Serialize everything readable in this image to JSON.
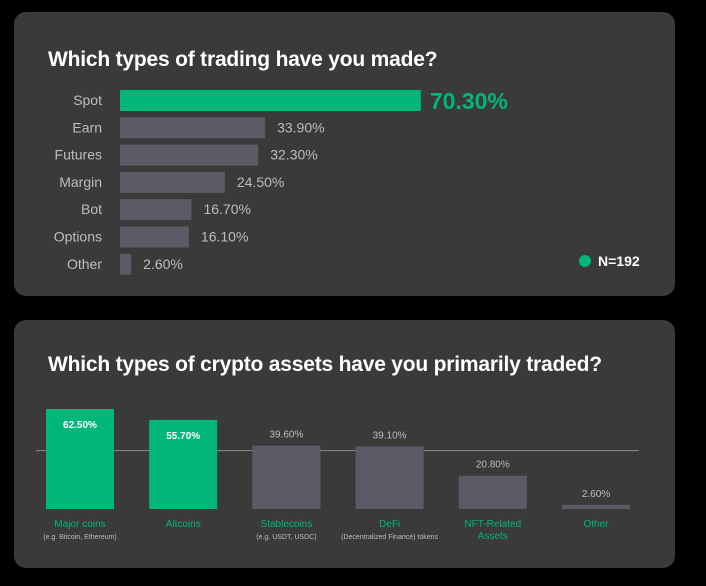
{
  "colors": {
    "accent": "#00b67a",
    "neutral_bar": "#5b5b66",
    "card_bg": "#3a3a3a",
    "label_grey": "#bdbdbd"
  },
  "card1": {
    "title": "Which types of trading have you made?",
    "sample": "N=192"
  },
  "card2": {
    "title": "Which types of crypto assets have you primarily traded?"
  },
  "chart_data": [
    {
      "type": "bar",
      "orientation": "horizontal",
      "title": "Which types of trading have you made?",
      "categories": [
        "Spot",
        "Earn",
        "Futures",
        "Margin",
        "Bot",
        "Options",
        "Other"
      ],
      "values": [
        70.3,
        33.9,
        32.3,
        24.5,
        16.7,
        16.1,
        2.6
      ],
      "value_labels": [
        "70.30%",
        "33.90%",
        "32.30%",
        "24.50%",
        "16.70%",
        "16.10%",
        "2.60%"
      ],
      "highlighted": [
        true,
        false,
        false,
        false,
        false,
        false,
        false
      ],
      "xlim": [
        0,
        100
      ],
      "legend": "N=192"
    },
    {
      "type": "bar",
      "orientation": "vertical",
      "title": "Which types of crypto assets have you primarily traded?",
      "categories": [
        "Major coins",
        "Altcoins",
        "Stablecoins",
        "DeFi",
        "NFT-Related Assets",
        "Other"
      ],
      "category_lines": [
        [
          "Major coins"
        ],
        [
          "Altcoins"
        ],
        [
          "Stablecoins"
        ],
        [
          "DeFi"
        ],
        [
          "NFT-Related",
          "Assets"
        ],
        [
          "Other"
        ]
      ],
      "sublabels": [
        "(e.g. Bitcoin, Ethereum)",
        "",
        "(e.g. USDT, USDC)",
        "(Decentralized Finance) tokens",
        "",
        ""
      ],
      "values": [
        62.5,
        55.7,
        39.6,
        39.1,
        20.8,
        2.6
      ],
      "value_labels": [
        "62.50%",
        "55.70%",
        "39.60%",
        "39.10%",
        "20.80%",
        "2.60%"
      ],
      "highlighted": [
        true,
        true,
        false,
        false,
        false,
        false
      ],
      "ylim": [
        0,
        62.5
      ],
      "reference_line": 36.5
    }
  ]
}
